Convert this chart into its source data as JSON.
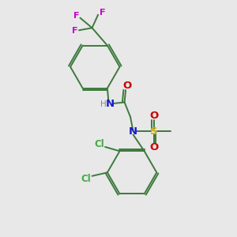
{
  "background_color": "#e8e8e8",
  "bond_color": "#3d7a3d",
  "colors": {
    "N": "#1a1acc",
    "O": "#cc0000",
    "S": "#ccaa00",
    "F": "#cc00cc",
    "Cl": "#44aa44",
    "H": "#888888",
    "C": "#3d7a3d"
  },
  "figsize": [
    3.0,
    3.0
  ],
  "dpi": 100
}
